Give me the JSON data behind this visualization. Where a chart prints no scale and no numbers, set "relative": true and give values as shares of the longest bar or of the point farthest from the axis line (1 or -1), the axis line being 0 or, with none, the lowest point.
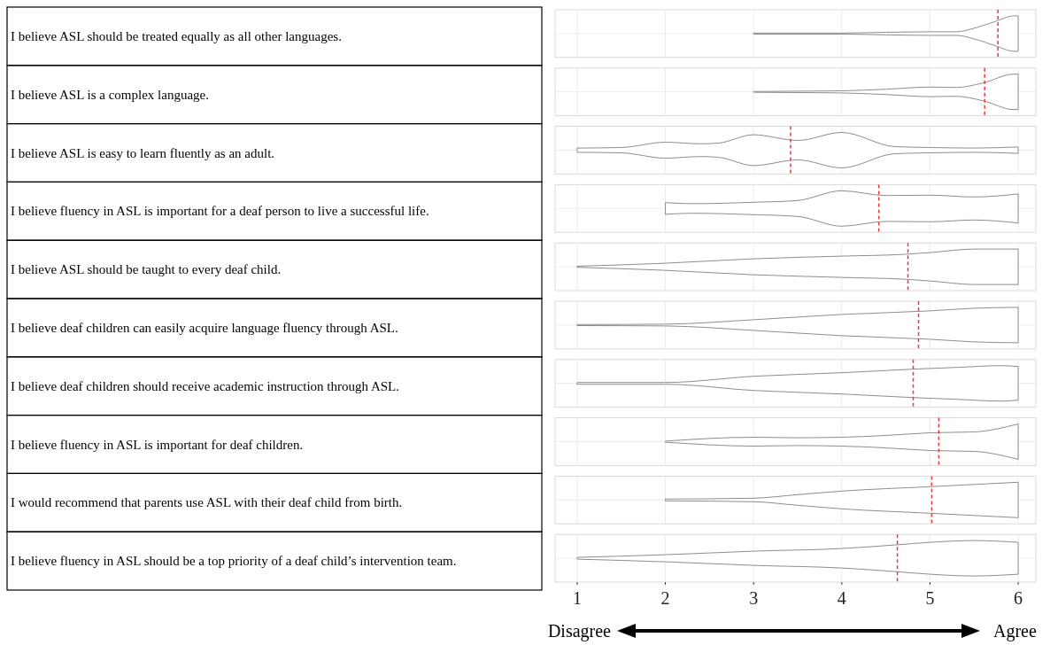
{
  "chart_data": [
    {
      "type": "area",
      "relative": true,
      "ylabel": "I believe ASL should be treated equally as all other languages.",
      "color": "#8c8c8c",
      "x": [
        3,
        3.5,
        4,
        4.5,
        5,
        5.3,
        5.5,
        5.75,
        5.95,
        6
      ],
      "values": [
        0.03,
        0.03,
        0.03,
        0.07,
        0.1,
        0.1,
        0.3,
        0.7,
        1,
        1
      ],
      "xlim": [
        0.75,
        6.2
      ],
      "xticks": [
        1,
        2,
        3,
        4,
        5,
        6
      ],
      "grid": true,
      "tick_labels": false,
      "ref_lines": [
        {
          "axis": "x",
          "value": 5.77,
          "color": "#e8383d",
          "line_style": "dashed"
        }
      ]
    },
    {
      "type": "area",
      "relative": true,
      "ylabel": "I believe ASL is a complex language.",
      "color": "#8c8c8c",
      "x": [
        3,
        3.5,
        4,
        4.5,
        5,
        5.3,
        5.6,
        5.95,
        6
      ],
      "values": [
        0.02,
        0.04,
        0.06,
        0.15,
        0.27,
        0.25,
        0.5,
        1,
        1
      ],
      "xlim": [
        0.75,
        6.2
      ],
      "xticks": [
        1,
        2,
        3,
        4,
        5,
        6
      ],
      "grid": true,
      "tick_labels": false,
      "ref_lines": [
        {
          "axis": "x",
          "value": 5.62,
          "color": "#e8383d",
          "line_style": "dashed"
        }
      ]
    },
    {
      "type": "area",
      "relative": true,
      "ylabel": "I believe ASL is easy to learn fluently as an adult.",
      "color": "#8c8c8c",
      "x": [
        1,
        1.5,
        2,
        2.4,
        2.6,
        3,
        3.5,
        4,
        4.6,
        5,
        5.5,
        6
      ],
      "values": [
        0.12,
        0.15,
        0.45,
        0.36,
        0.4,
        0.87,
        0.55,
        1,
        0.2,
        0.15,
        0.12,
        0.18
      ],
      "xlim": [
        0.75,
        6.2
      ],
      "xticks": [
        1,
        2,
        3,
        4,
        5,
        6
      ],
      "grid": true,
      "tick_labels": false,
      "ref_lines": [
        {
          "axis": "x",
          "value": 3.42,
          "color": "#e8383d",
          "line_style": "dashed"
        }
      ]
    },
    {
      "type": "area",
      "relative": true,
      "ylabel": "I believe fluency in ASL is important for a deaf person to live a successful life.",
      "color": "#8c8c8c",
      "x": [
        2,
        2.3,
        3,
        3.5,
        4,
        4.5,
        5,
        5.5,
        6
      ],
      "values": [
        0.33,
        0.27,
        0.35,
        0.45,
        1,
        0.73,
        0.75,
        0.65,
        0.82
      ],
      "xlim": [
        0.75,
        6.2
      ],
      "xticks": [
        1,
        2,
        3,
        4,
        5,
        6
      ],
      "grid": true,
      "tick_labels": false,
      "ref_lines": [
        {
          "axis": "x",
          "value": 4.42,
          "color": "#e8383d",
          "line_style": "dashed"
        }
      ]
    },
    {
      "type": "area",
      "relative": true,
      "ylabel": "I believe ASL should be taught to every deaf child.",
      "color": "#8c8c8c",
      "x": [
        1,
        2,
        3,
        4,
        4.7,
        5,
        5.5,
        6
      ],
      "values": [
        0.03,
        0.2,
        0.45,
        0.6,
        0.7,
        0.8,
        1,
        1
      ],
      "xlim": [
        0.75,
        6.2
      ],
      "xticks": [
        1,
        2,
        3,
        4,
        5,
        6
      ],
      "grid": true,
      "tick_labels": false,
      "ref_lines": [
        {
          "axis": "x",
          "value": 4.75,
          "color": "#e8383d",
          "line_style": "dashed"
        }
      ]
    },
    {
      "type": "area",
      "relative": true,
      "ylabel": "I believe deaf children can easily acquire language fluency through ASL.",
      "color": "#8c8c8c",
      "x": [
        1,
        2,
        3,
        4,
        5,
        5.5,
        6
      ],
      "values": [
        0.03,
        0.05,
        0.3,
        0.6,
        0.8,
        0.95,
        1
      ],
      "xlim": [
        0.75,
        6.2
      ],
      "xticks": [
        1,
        2,
        3,
        4,
        5,
        6
      ],
      "grid": true,
      "tick_labels": false,
      "ref_lines": [
        {
          "axis": "x",
          "value": 4.87,
          "color": "#e8383d",
          "line_style": "dashed"
        }
      ]
    },
    {
      "type": "area",
      "relative": true,
      "ylabel": "I believe deaf children should receive academic instruction through ASL.",
      "color": "#8c8c8c",
      "x": [
        1,
        2,
        3,
        4,
        4.8,
        5.3,
        5.8,
        6
      ],
      "values": [
        0.05,
        0.05,
        0.4,
        0.6,
        0.8,
        0.9,
        1,
        0.95
      ],
      "xlim": [
        0.75,
        6.2
      ],
      "xticks": [
        1,
        2,
        3,
        4,
        5,
        6
      ],
      "grid": true,
      "tick_labels": false,
      "ref_lines": [
        {
          "axis": "x",
          "value": 4.81,
          "color": "#e8383d",
          "line_style": "dashed"
        }
      ]
    },
    {
      "type": "area",
      "relative": true,
      "ylabel": "I believe fluency in ASL is important for deaf children.",
      "color": "#8c8c8c",
      "x": [
        2,
        3,
        3.5,
        4,
        4.5,
        5,
        5.5,
        6
      ],
      "values": [
        0.03,
        0.25,
        0.22,
        0.25,
        0.35,
        0.5,
        0.55,
        1
      ],
      "xlim": [
        0.75,
        6.2
      ],
      "xticks": [
        1,
        2,
        3,
        4,
        5,
        6
      ],
      "grid": true,
      "tick_labels": false,
      "ref_lines": [
        {
          "axis": "x",
          "value": 5.1,
          "color": "#e8383d",
          "line_style": "dashed"
        }
      ]
    },
    {
      "type": "area",
      "relative": true,
      "ylabel": "I would recommend that parents use ASL with their deaf child from birth.",
      "color": "#8c8c8c",
      "x": [
        2,
        3,
        3.5,
        4,
        5,
        6
      ],
      "values": [
        0.05,
        0.1,
        0.3,
        0.5,
        0.75,
        1
      ],
      "xlim": [
        0.75,
        6.2
      ],
      "xticks": [
        1,
        2,
        3,
        4,
        5,
        6
      ],
      "grid": true,
      "tick_labels": false,
      "ref_lines": [
        {
          "axis": "x",
          "value": 5.02,
          "color": "#e8383d",
          "line_style": "dashed"
        }
      ]
    },
    {
      "type": "area",
      "relative": true,
      "ylabel": "I believe fluency in ASL should be a top priority of a deaf child’s intervention team.",
      "color": "#8c8c8c",
      "x": [
        1,
        2,
        3,
        4,
        4.6,
        5,
        5.5,
        6
      ],
      "values": [
        0.05,
        0.2,
        0.4,
        0.55,
        0.75,
        0.9,
        1,
        0.9
      ],
      "xlim": [
        0.75,
        6.2
      ],
      "xticks": [
        1,
        2,
        3,
        4,
        5,
        6
      ],
      "grid": true,
      "ref_lines": [
        {
          "axis": "x",
          "value": 4.63,
          "color": "#e8383d",
          "line_style": "dashed"
        }
      ],
      "annotations": [
        "Disagree",
        "Agree"
      ]
    }
  ]
}
